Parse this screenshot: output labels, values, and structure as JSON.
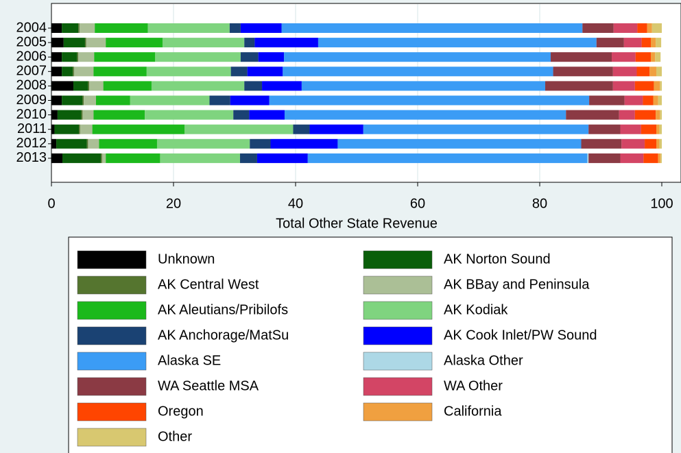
{
  "chart_data": {
    "type": "stacked-barh",
    "xlabel": "Total Other State Revenue",
    "categories": [
      "2004",
      "2005",
      "2006",
      "2007",
      "2008",
      "2009",
      "2010",
      "2011",
      "2012",
      "2013"
    ],
    "xlim": [
      0,
      100
    ],
    "xticks": [
      0,
      20,
      40,
      60,
      80,
      100
    ],
    "grid": true,
    "series": [
      {
        "name": "Unknown",
        "color": "#000000",
        "values": [
          1.7,
          2.0,
          1.7,
          1.7,
          3.6,
          1.7,
          1.0,
          0.5,
          0.8,
          1.8
        ]
      },
      {
        "name": "AK Norton Sound",
        "color": "#0a5e0a",
        "values": [
          2.7,
          3.5,
          2.5,
          1.8,
          2.4,
          3.4,
          3.9,
          4.0,
          5.0,
          6.3
        ]
      },
      {
        "name": "AK Central West",
        "color": "#55752f",
        "values": [
          0.2,
          0.2,
          0.2,
          0.2,
          0.2,
          0.2,
          0.2,
          0.2,
          0.2,
          0.2
        ]
      },
      {
        "name": "AK BBay and Peninsula",
        "color": "#abbf96",
        "values": [
          2.5,
          3.2,
          2.6,
          3.2,
          2.3,
          2.0,
          1.8,
          2.0,
          1.8,
          0.6
        ]
      },
      {
        "name": "AK Aleutians/Pribilofs",
        "color": "#1cb91c",
        "values": [
          8.7,
          9.3,
          10.0,
          8.7,
          7.9,
          5.6,
          8.4,
          15.1,
          9.5,
          8.9
        ]
      },
      {
        "name": "AK Kodiak",
        "color": "#7fd47f",
        "values": [
          13.4,
          13.4,
          14.0,
          13.8,
          15.2,
          13.0,
          14.5,
          17.8,
          15.2,
          13.1
        ]
      },
      {
        "name": "AK Anchorage/MatSu",
        "color": "#1a4273",
        "values": [
          1.8,
          1.7,
          2.9,
          2.7,
          2.9,
          3.4,
          2.6,
          2.7,
          3.4,
          2.8
        ]
      },
      {
        "name": "AK Cook Inlet/PW Sound",
        "color": "#0000ff",
        "values": [
          6.7,
          10.4,
          4.2,
          5.8,
          6.5,
          6.4,
          5.8,
          8.8,
          11.0,
          8.3
        ]
      },
      {
        "name": "Alaska SE",
        "color": "#3b9cf5",
        "values": [
          49.3,
          45.6,
          43.7,
          44.3,
          39.9,
          52.4,
          46.1,
          36.9,
          39.9,
          45.8
        ]
      },
      {
        "name": "Alaska Other",
        "color": "#add8e6",
        "values": [
          0,
          0,
          0,
          0,
          0,
          0,
          0,
          0,
          0,
          0.2
        ]
      },
      {
        "name": "WA Seattle MSA",
        "color": "#8b3a44",
        "values": [
          5.1,
          4.5,
          10.0,
          9.8,
          11.1,
          5.8,
          8.7,
          5.2,
          6.6,
          5.2
        ]
      },
      {
        "name": "WA Other",
        "color": "#d34565",
        "values": [
          3.9,
          2.9,
          3.9,
          3.9,
          3.6,
          3.0,
          2.6,
          3.4,
          3.8,
          3.8
        ]
      },
      {
        "name": "Oregon",
        "color": "#ff4500",
        "values": [
          1.6,
          1.5,
          2.5,
          2.1,
          3.1,
          1.7,
          3.4,
          2.5,
          1.9,
          2.4
        ]
      },
      {
        "name": "California",
        "color": "#f0a040",
        "values": [
          0.8,
          0.8,
          0.7,
          1.1,
          1.0,
          0.8,
          0.7,
          0.5,
          0.5,
          0.4
        ]
      },
      {
        "name": "Other",
        "color": "#d8c870",
        "values": [
          1.6,
          0.9,
          0.9,
          0.9,
          0.3,
          0.6,
          0.3,
          0.4,
          0.4,
          0.2
        ]
      }
    ]
  }
}
